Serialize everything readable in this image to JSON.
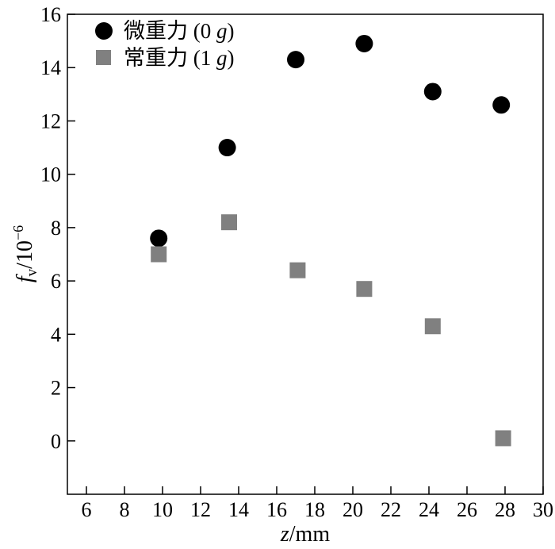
{
  "chart_data": {
    "type": "scatter",
    "xlabel": {
      "var": "z",
      "unit": "/mm"
    },
    "ylabel": {
      "var": "f",
      "sub": "v",
      "unit": "/10",
      "exp": "−6"
    },
    "xlim": [
      5,
      30
    ],
    "ylim": [
      -2,
      16
    ],
    "xticks": [
      6,
      8,
      10,
      12,
      14,
      16,
      18,
      20,
      22,
      24,
      26,
      28,
      30
    ],
    "yticks": [
      0,
      2,
      4,
      6,
      8,
      10,
      12,
      14,
      16
    ],
    "grid": false,
    "legend_position": "top-left",
    "series": [
      {
        "name": "微重力 (0 g)",
        "label_text": "微重力 (0 ",
        "label_var": "g",
        "label_close": ")",
        "marker": "circle",
        "color": "#000000",
        "points": [
          {
            "x": 9.8,
            "y": 7.6
          },
          {
            "x": 13.4,
            "y": 11.0
          },
          {
            "x": 17.0,
            "y": 14.3
          },
          {
            "x": 20.6,
            "y": 14.9
          },
          {
            "x": 24.2,
            "y": 13.1
          },
          {
            "x": 27.8,
            "y": 12.6
          }
        ]
      },
      {
        "name": "常重力 (1 g)",
        "label_text": "常重力 (1 ",
        "label_var": "g",
        "label_close": ")",
        "marker": "square",
        "color": "#808080",
        "points": [
          {
            "x": 9.8,
            "y": 7.0
          },
          {
            "x": 13.5,
            "y": 8.2
          },
          {
            "x": 17.1,
            "y": 6.4
          },
          {
            "x": 20.6,
            "y": 5.7
          },
          {
            "x": 24.2,
            "y": 4.3
          },
          {
            "x": 27.9,
            "y": 0.1
          }
        ]
      }
    ]
  }
}
